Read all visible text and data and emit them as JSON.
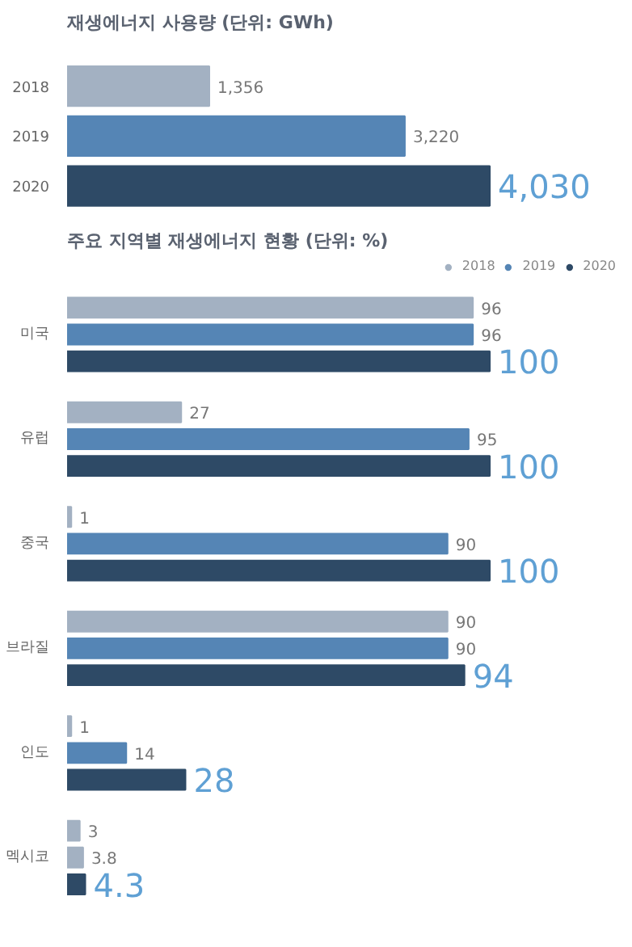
{
  "chart_data": [
    {
      "type": "bar",
      "orientation": "horizontal",
      "title": "재생에너지 사용량 (단위: GWh)",
      "categories": [
        "2018",
        "2019",
        "2020"
      ],
      "legend": false,
      "grid": false,
      "series": [
        {
          "values": [
            1356,
            3220,
            4030
          ],
          "colors": [
            "#a3b1c2",
            "#5585b5",
            "#2e4a66"
          ],
          "value_labels": [
            "1,356",
            "3,220",
            "4,030"
          ]
        }
      ]
    },
    {
      "type": "bar",
      "orientation": "horizontal",
      "title": "주요 지역별 재생에너지 현황 (단위: %)",
      "categories": [
        "미국",
        "유럽",
        "중국",
        "브라질",
        "인도",
        "멕시코"
      ],
      "legend": "top right",
      "grid": false,
      "data_labels": true,
      "series": [
        {
          "name": "2018",
          "color": "#a3b1c2",
          "values": [
            96,
            27,
            1,
            90,
            1,
            3
          ]
        },
        {
          "name": "2019",
          "color": "#5585b5",
          "values": [
            96,
            95,
            90,
            90,
            14,
            3.8
          ],
          "colors": [
            "#5585b5",
            "#5585b5",
            "#5585b5",
            "#5585b5",
            "#5585b5",
            "#a3b1c2"
          ]
        },
        {
          "name": "2020",
          "color": "#2e4a66",
          "values": [
            100,
            100,
            100,
            94,
            28,
            4.3
          ]
        }
      ]
    }
  ]
}
